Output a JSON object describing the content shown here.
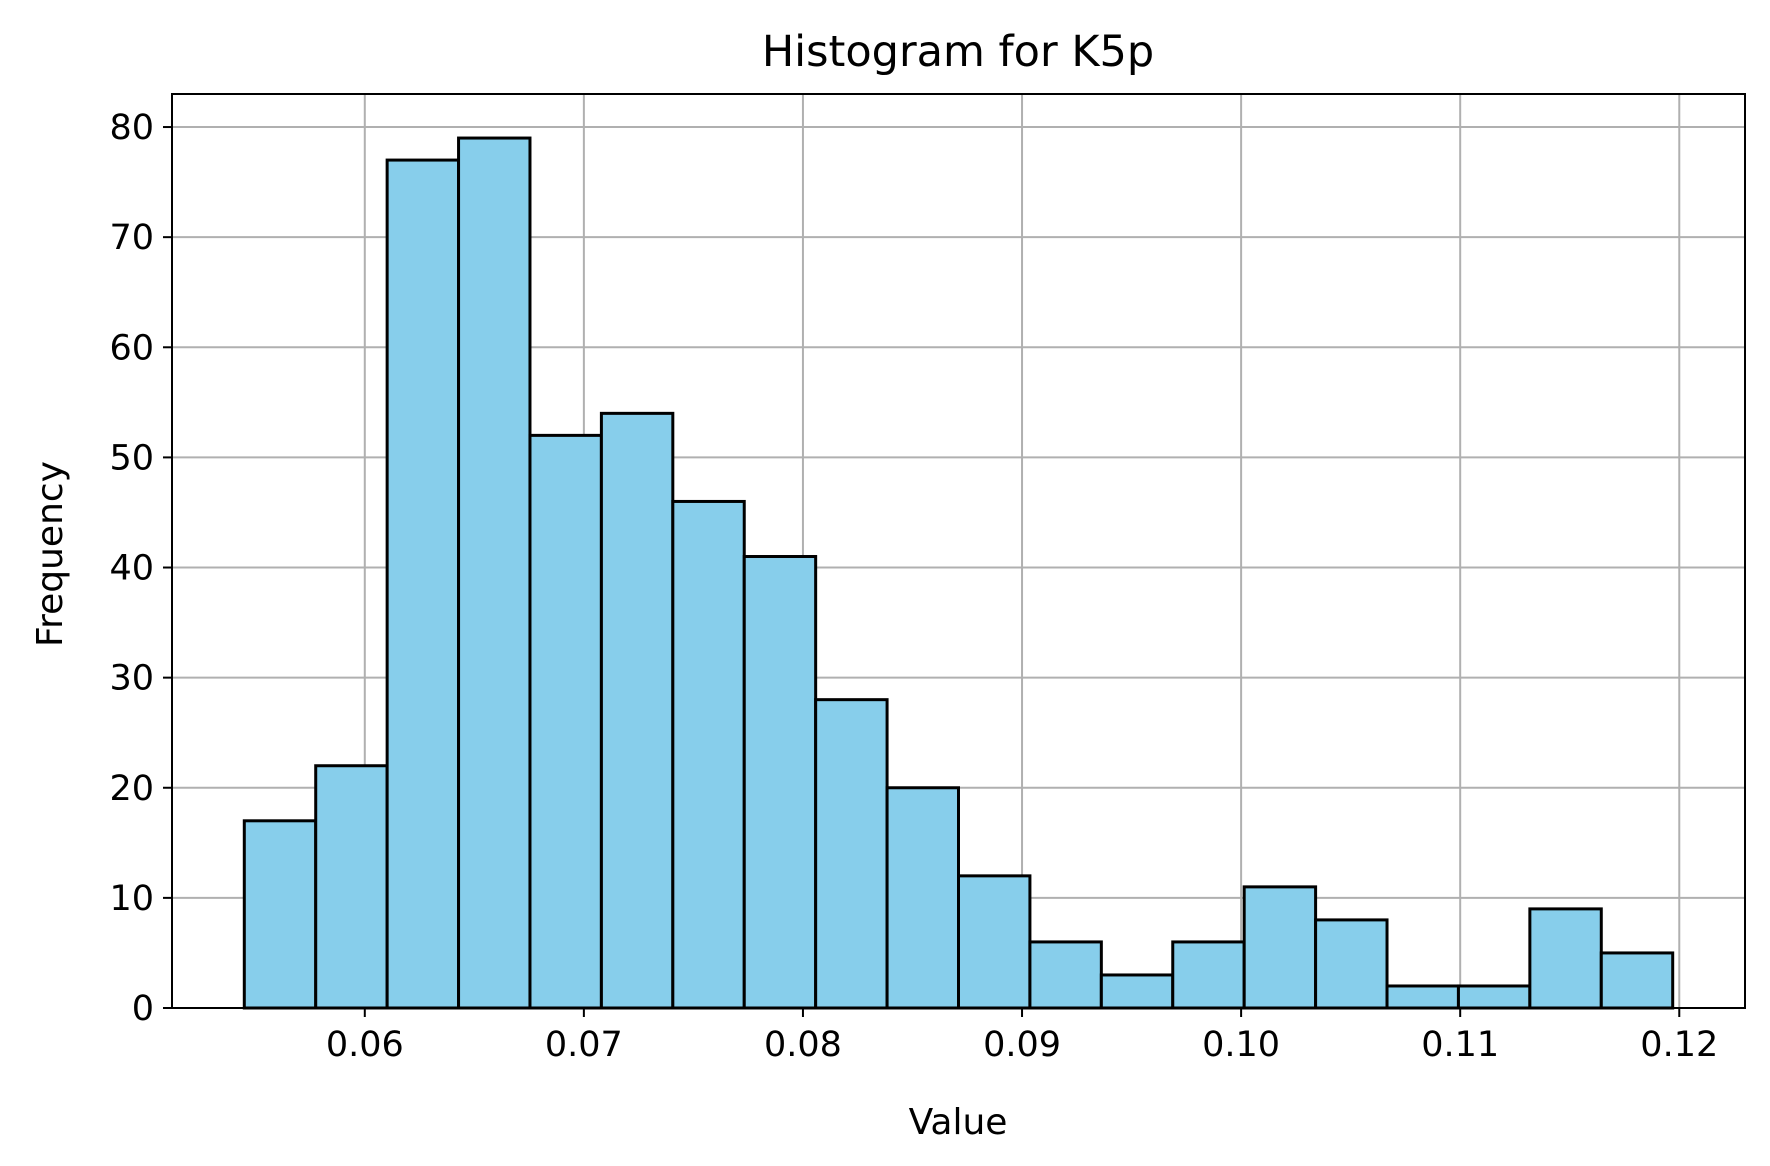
{
  "chart_data": {
    "type": "bar",
    "title": "Histogram for K5p",
    "xlabel": "Value",
    "ylabel": "Frequency",
    "bin_edges": [
      0.0545,
      0.05776,
      0.06102,
      0.06428,
      0.06754,
      0.0708,
      0.07406,
      0.07732,
      0.08058,
      0.08384,
      0.0871,
      0.09036,
      0.09362,
      0.09688,
      0.10014,
      0.1034,
      0.10666,
      0.10992,
      0.11318,
      0.11644,
      0.1197
    ],
    "values": [
      17,
      22,
      77,
      79,
      52,
      54,
      46,
      41,
      28,
      20,
      12,
      6,
      3,
      6,
      11,
      8,
      2,
      2,
      9,
      5
    ],
    "xlim": [
      0.0512,
      0.123
    ],
    "ylim": [
      0,
      83
    ],
    "x_ticks": [
      0.06,
      0.07,
      0.08,
      0.09,
      0.1,
      0.11,
      0.12
    ],
    "x_tick_labels": [
      "0.06",
      "0.07",
      "0.08",
      "0.09",
      "0.10",
      "0.11",
      "0.12"
    ],
    "y_ticks": [
      0,
      10,
      20,
      30,
      40,
      50,
      60,
      70,
      80
    ],
    "y_tick_labels": [
      "0",
      "10",
      "20",
      "30",
      "40",
      "50",
      "60",
      "70",
      "80"
    ],
    "grid": true,
    "bar_color": "#87CEEB",
    "edge_color": "#000000",
    "grid_color": "#b0b0b0"
  }
}
